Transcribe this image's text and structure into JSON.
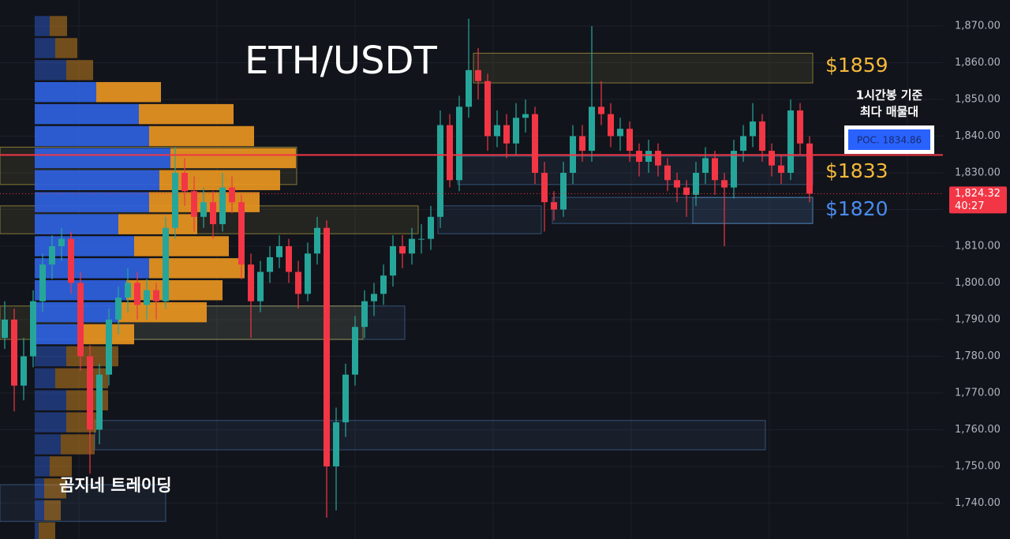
{
  "chart_data": {
    "type": "candlestick",
    "title": "ETH/USDT",
    "open": [
      1785,
      1790,
      1772,
      1780,
      1795,
      1805,
      1810,
      1812,
      1800,
      1780,
      1760,
      1775,
      1790,
      1796,
      1800,
      1794,
      1798,
      1795,
      1815,
      1830,
      1825,
      1818,
      1822,
      1816,
      1826,
      1822,
      1805,
      1795,
      1803,
      1807,
      1810,
      1803,
      1797,
      1808,
      1815,
      1750,
      1762,
      1775,
      1788,
      1795,
      1797,
      1802,
      1810,
      1808,
      1812,
      1812,
      1818,
      1843,
      1828,
      1848,
      1858,
      1855,
      1840,
      1843,
      1838,
      1845,
      1846,
      1830,
      1822,
      1820,
      1830,
      1840,
      1836,
      1848,
      1846,
      1840,
      1842,
      1836,
      1833,
      1836,
      1832,
      1828,
      1826,
      1824,
      1830,
      1834,
      1828,
      1826,
      1836,
      1840,
      1844,
      1836,
      1832,
      1830,
      1847,
      1838
    ],
    "high": [
      1795,
      1793,
      1785,
      1798,
      1808,
      1813,
      1815,
      1814,
      1803,
      1783,
      1778,
      1793,
      1799,
      1804,
      1803,
      1801,
      1800,
      1818,
      1837,
      1834,
      1829,
      1826,
      1825,
      1830,
      1829,
      1824,
      1808,
      1806,
      1810,
      1813,
      1812,
      1806,
      1811,
      1818,
      1817,
      1766,
      1778,
      1791,
      1798,
      1800,
      1805,
      1813,
      1813,
      1815,
      1816,
      1821,
      1847,
      1846,
      1851,
      1872,
      1864,
      1857,
      1847,
      1846,
      1849,
      1850,
      1848,
      1833,
      1825,
      1833,
      1843,
      1843,
      1870,
      1855,
      1849,
      1845,
      1844,
      1838,
      1839,
      1838,
      1834,
      1830,
      1828,
      1833,
      1837,
      1836,
      1830,
      1839,
      1843,
      1849,
      1846,
      1838,
      1835,
      1850,
      1849,
      1840
    ],
    "low": [
      1782,
      1765,
      1768,
      1777,
      1792,
      1801,
      1806,
      1797,
      1776,
      1748,
      1756,
      1772,
      1786,
      1792,
      1790,
      1790,
      1790,
      1793,
      1812,
      1821,
      1814,
      1815,
      1812,
      1814,
      1819,
      1801,
      1785,
      1792,
      1800,
      1804,
      1800,
      1793,
      1795,
      1805,
      1736,
      1738,
      1758,
      1772,
      1785,
      1791,
      1794,
      1799,
      1804,
      1805,
      1808,
      1809,
      1815,
      1826,
      1825,
      1845,
      1850,
      1836,
      1837,
      1834,
      1835,
      1841,
      1827,
      1814,
      1817,
      1818,
      1827,
      1833,
      1833,
      1843,
      1837,
      1836,
      1833,
      1829,
      1830,
      1829,
      1825,
      1822,
      1818,
      1821,
      1827,
      1824,
      1810,
      1823,
      1833,
      1837,
      1833,
      1829,
      1827,
      1828,
      1835,
      1822
    ],
    "close": [
      1790,
      1772,
      1780,
      1795,
      1805,
      1810,
      1812,
      1800,
      1780,
      1760,
      1775,
      1790,
      1796,
      1800,
      1794,
      1798,
      1795,
      1815,
      1830,
      1825,
      1818,
      1822,
      1816,
      1826,
      1822,
      1805,
      1795,
      1803,
      1807,
      1810,
      1803,
      1797,
      1808,
      1815,
      1750,
      1762,
      1775,
      1788,
      1795,
      1797,
      1802,
      1810,
      1808,
      1812,
      1812,
      1818,
      1843,
      1828,
      1848,
      1858,
      1855,
      1840,
      1843,
      1838,
      1845,
      1846,
      1830,
      1822,
      1820,
      1830,
      1840,
      1836,
      1848,
      1846,
      1840,
      1842,
      1836,
      1833,
      1836,
      1832,
      1828,
      1826,
      1824,
      1830,
      1834,
      1828,
      1826,
      1836,
      1840,
      1844,
      1836,
      1832,
      1830,
      1847,
      1838,
      1824.32
    ],
    "up_color": "#26a69a",
    "down_color": "#f23645",
    "ylim": [
      1730.2,
      1877.1
    ],
    "yticks": [
      {
        "value": 1740,
        "label": "1,740.00"
      },
      {
        "value": 1750,
        "label": "1,750.00"
      },
      {
        "value": 1760,
        "label": "1,760.00"
      },
      {
        "value": 1770,
        "label": "1,770.00"
      },
      {
        "value": 1780,
        "label": "1,780.00"
      },
      {
        "value": 1790,
        "label": "1,790.00"
      },
      {
        "value": 1800,
        "label": "1,800.00"
      },
      {
        "value": 1810,
        "label": "1,810.00"
      },
      {
        "value": 1820,
        "label": "1,820.00"
      },
      {
        "value": 1830,
        "label": "1,830.00"
      },
      {
        "value": 1840,
        "label": "1,840.00"
      },
      {
        "value": 1850,
        "label": "1,850.00"
      },
      {
        "value": 1860,
        "label": "1,860.00"
      },
      {
        "value": 1870,
        "label": "1,870.00"
      }
    ],
    "grid": true,
    "volume_profile": {
      "levels": [
        1870,
        1864,
        1858,
        1852,
        1846,
        1840,
        1834,
        1828,
        1822,
        1816,
        1810,
        1804,
        1798,
        1792,
        1786,
        1780,
        1774,
        1768,
        1762,
        1756,
        1750,
        1744,
        1738,
        1732
      ],
      "buy": [
        19,
        26,
        40,
        78,
        132,
        145,
        172,
        158,
        145,
        106,
        126,
        145,
        116,
        106,
        54,
        40,
        26,
        40,
        40,
        33,
        19,
        12,
        12,
        5
      ],
      "sell": [
        22,
        28,
        34,
        82,
        120,
        133,
        159,
        153,
        140,
        100,
        120,
        121,
        122,
        112,
        72,
        66,
        67,
        53,
        38,
        43,
        28,
        28,
        21,
        21
      ],
      "buy_color": "#2f62e0",
      "sell_color": "#e8951f"
    },
    "zones": [
      {
        "low": 1854.5,
        "high": 1862.6,
        "color": "#c8b84a"
      },
      {
        "low": 1826.8,
        "high": 1834.5,
        "color": "#4a7cb0"
      },
      {
        "low": 1816.2,
        "high": 1823.3,
        "color": "#4a7cb0"
      },
      {
        "low": 1816.2,
        "high": 1823.3,
        "color": "#5aa0d8"
      },
      {
        "low": 1813.4,
        "high": 1821,
        "color": "#4a7cb0"
      },
      {
        "low": 1813.4,
        "high": 1821,
        "color": "#c8b84a"
      },
      {
        "low": 1826.8,
        "high": 1837,
        "color": "#c8b84a"
      },
      {
        "low": 1784.6,
        "high": 1793.7,
        "color": "#4a7cb0"
      },
      {
        "low": 1784.6,
        "high": 1793.7,
        "color": "#c8b84a"
      },
      {
        "low": 1754.5,
        "high": 1762.5,
        "color": "#4a7cb0"
      },
      {
        "low": 1735,
        "high": 1745,
        "color": "#4a7cb0"
      }
    ],
    "poc": {
      "label": "POC. 1834.86",
      "value": 1834.86,
      "color": "#f23645"
    },
    "last_price": {
      "label": "1,824.32",
      "value": 1824.32,
      "countdown": "40:27"
    },
    "annotations": [
      {
        "text": "$1859",
        "color": "#f5b93a"
      },
      {
        "text": "$1833",
        "color": "#f5b93a"
      },
      {
        "text": "$1820",
        "color": "#4a8cf0"
      }
    ],
    "note": [
      "1시간봉 기준",
      "최다 매물대"
    ],
    "watermark": "곰지네 트레이딩"
  }
}
